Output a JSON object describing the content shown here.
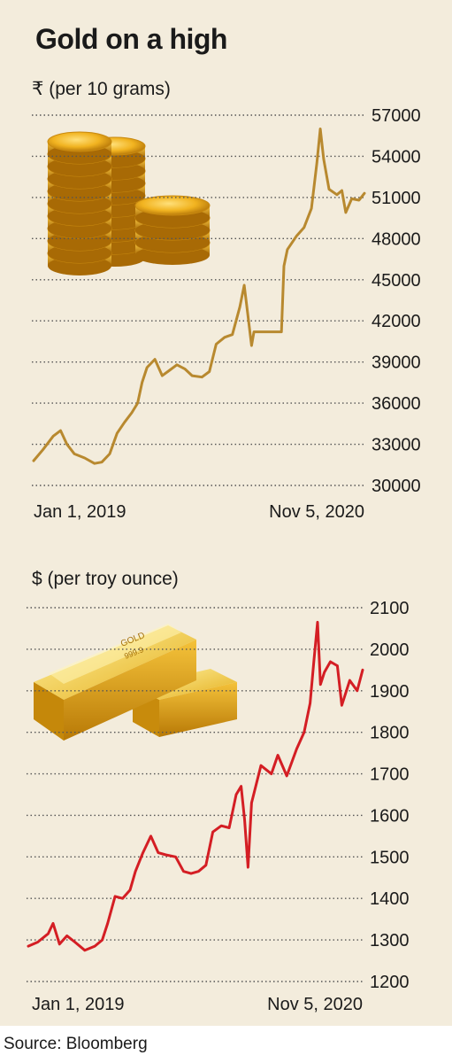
{
  "title": "Gold on a high",
  "source": "Source: Bloomberg",
  "colors": {
    "inr_line": "#b8892f",
    "usd_line": "#d41e24",
    "grid": "#555555"
  },
  "illustrations": {
    "top": "gold-coin-stack-icon",
    "bottom": "gold-bar-icon"
  },
  "chart_data": [
    {
      "type": "line",
      "ylabel": "₹ (per 10 grams)",
      "x_labels": [
        "Jan 1, 2019",
        "Nov 5, 2020"
      ],
      "x_range": [
        "2019-01-01",
        "2020-11-05"
      ],
      "ylim": [
        30000,
        57000
      ],
      "yticks": [
        30000,
        33000,
        36000,
        39000,
        42000,
        45000,
        48000,
        51000,
        54000,
        57000
      ],
      "grid": "horizontal dotted",
      "series": [
        {
          "values": [
            [
              "2019-01-01",
              31800
            ],
            [
              "2019-01-20",
              32600
            ],
            [
              "2019-02-10",
              33600
            ],
            [
              "2019-02-25",
              34000
            ],
            [
              "2019-03-10",
              33000
            ],
            [
              "2019-03-25",
              32300
            ],
            [
              "2019-04-15",
              32000
            ],
            [
              "2019-05-05",
              31600
            ],
            [
              "2019-05-20",
              31700
            ],
            [
              "2019-06-05",
              32300
            ],
            [
              "2019-06-20",
              33800
            ],
            [
              "2019-07-05",
              34600
            ],
            [
              "2019-07-20",
              35300
            ],
            [
              "2019-08-01",
              36000
            ],
            [
              "2019-08-10",
              37500
            ],
            [
              "2019-08-20",
              38600
            ],
            [
              "2019-09-05",
              39200
            ],
            [
              "2019-09-20",
              38000
            ],
            [
              "2019-10-05",
              38400
            ],
            [
              "2019-10-20",
              38800
            ],
            [
              "2019-11-05",
              38500
            ],
            [
              "2019-11-20",
              38000
            ],
            [
              "2019-12-10",
              37900
            ],
            [
              "2019-12-25",
              38300
            ],
            [
              "2020-01-08",
              40300
            ],
            [
              "2020-01-25",
              40800
            ],
            [
              "2020-02-10",
              41000
            ],
            [
              "2020-02-25",
              43000
            ],
            [
              "2020-03-05",
              44600
            ],
            [
              "2020-03-12",
              42600
            ],
            [
              "2020-03-20",
              40200
            ],
            [
              "2020-03-25",
              41200
            ],
            [
              "2020-05-20",
              41200
            ],
            [
              "2020-05-25",
              46000
            ],
            [
              "2020-06-01",
              47200
            ],
            [
              "2020-06-20",
              48200
            ],
            [
              "2020-07-05",
              48800
            ],
            [
              "2020-07-20",
              50200
            ],
            [
              "2020-07-31",
              53500
            ],
            [
              "2020-08-07",
              56000
            ],
            [
              "2020-08-14",
              53800
            ],
            [
              "2020-08-25",
              51600
            ],
            [
              "2020-09-10",
              51200
            ],
            [
              "2020-09-20",
              51500
            ],
            [
              "2020-09-28",
              49900
            ],
            [
              "2020-10-10",
              50900
            ],
            [
              "2020-10-25",
              50800
            ],
            [
              "2020-11-05",
              51300
            ]
          ]
        }
      ]
    },
    {
      "type": "line",
      "ylabel": "$ (per troy ounce)",
      "x_labels": [
        "Jan 1, 2019",
        "Nov 5, 2020"
      ],
      "x_range": [
        "2019-01-01",
        "2020-11-05"
      ],
      "ylim": [
        1200,
        2100
      ],
      "yticks": [
        1200,
        1300,
        1400,
        1500,
        1600,
        1700,
        1800,
        1900,
        2000,
        2100
      ],
      "grid": "horizontal dotted",
      "series": [
        {
          "values": [
            [
              "2019-01-01",
              1285
            ],
            [
              "2019-01-20",
              1295
            ],
            [
              "2019-02-10",
              1315
            ],
            [
              "2019-02-20",
              1340
            ],
            [
              "2019-03-05",
              1290
            ],
            [
              "2019-03-20",
              1310
            ],
            [
              "2019-04-05",
              1295
            ],
            [
              "2019-04-25",
              1275
            ],
            [
              "2019-05-15",
              1285
            ],
            [
              "2019-05-30",
              1300
            ],
            [
              "2019-06-10",
              1340
            ],
            [
              "2019-06-25",
              1405
            ],
            [
              "2019-07-10",
              1400
            ],
            [
              "2019-07-25",
              1420
            ],
            [
              "2019-08-05",
              1465
            ],
            [
              "2019-08-20",
              1510
            ],
            [
              "2019-09-05",
              1550
            ],
            [
              "2019-09-20",
              1510
            ],
            [
              "2019-10-05",
              1505
            ],
            [
              "2019-10-25",
              1500
            ],
            [
              "2019-11-10",
              1465
            ],
            [
              "2019-11-25",
              1460
            ],
            [
              "2019-12-10",
              1465
            ],
            [
              "2019-12-25",
              1480
            ],
            [
              "2020-01-08",
              1560
            ],
            [
              "2020-01-25",
              1575
            ],
            [
              "2020-02-10",
              1570
            ],
            [
              "2020-02-24",
              1650
            ],
            [
              "2020-03-05",
              1670
            ],
            [
              "2020-03-12",
              1590
            ],
            [
              "2020-03-19",
              1475
            ],
            [
              "2020-03-26",
              1630
            ],
            [
              "2020-04-14",
              1720
            ],
            [
              "2020-05-05",
              1700
            ],
            [
              "2020-05-18",
              1745
            ],
            [
              "2020-06-05",
              1695
            ],
            [
              "2020-06-25",
              1760
            ],
            [
              "2020-07-10",
              1800
            ],
            [
              "2020-07-22",
              1870
            ],
            [
              "2020-07-30",
              1975
            ],
            [
              "2020-08-06",
              2065
            ],
            [
              "2020-08-12",
              1915
            ],
            [
              "2020-08-20",
              1945
            ],
            [
              "2020-09-01",
              1970
            ],
            [
              "2020-09-15",
              1960
            ],
            [
              "2020-09-24",
              1865
            ],
            [
              "2020-10-10",
              1925
            ],
            [
              "2020-10-25",
              1900
            ],
            [
              "2020-11-05",
              1950
            ]
          ]
        }
      ]
    }
  ]
}
